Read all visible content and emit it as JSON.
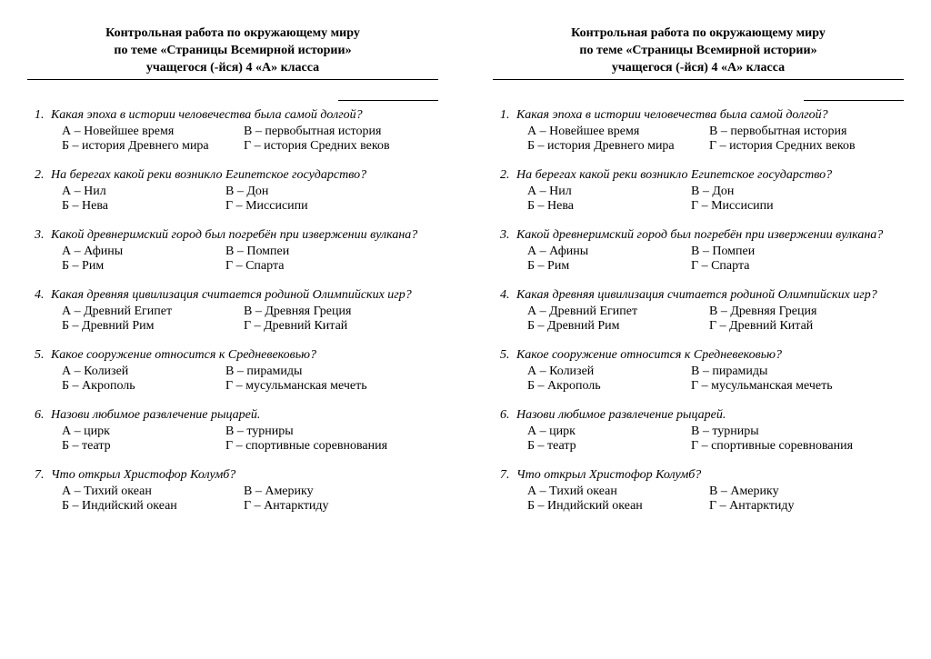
{
  "header": {
    "line1": "Контрольная работа по окружающему миру",
    "line2": "по теме «Страницы Всемирной истории»",
    "line3": "учащегося (-йся) 4 «А» класса"
  },
  "questions": [
    {
      "num": "1.",
      "text": "Какая эпоха в истории человечества была самой долгой?",
      "opts": [
        [
          "А – Новейшее время",
          "В – первобытная история"
        ],
        [
          "Б  – история Древнего мира",
          "Г – история Средних веков"
        ]
      ],
      "wide": true
    },
    {
      "num": "2.",
      "text": "На берегах какой реки возникло Египетское государство?",
      "opts": [
        [
          "А – Нил",
          "В – Дон"
        ],
        [
          "Б – Нева",
          "Г – Миссисипи"
        ]
      ]
    },
    {
      "num": "3.",
      "text": "Какой древнеримский город был погребён при извержении вулкана?",
      "opts": [
        [
          "А – Афины",
          "В – Помпеи"
        ],
        [
          "Б – Рим",
          "Г – Спарта"
        ]
      ]
    },
    {
      "num": "4.",
      "text": "Какая древняя цивилизация считается родиной Олимпийских игр?",
      "opts": [
        [
          "А – Древний Египет",
          "В – Древняя Греция"
        ],
        [
          "Б – Древний Рим",
          "Г – Древний Китай"
        ]
      ],
      "wide": true
    },
    {
      "num": "5.",
      "text": "Какое сооружение относится к Средневековью?",
      "opts": [
        [
          "А – Колизей",
          "В – пирамиды"
        ],
        [
          "Б – Акрополь",
          "Г – мусульманская мечеть"
        ]
      ]
    },
    {
      "num": "6.",
      "text": "Назови любимое развлечение рыцарей.",
      "opts": [
        [
          "А – цирк",
          "В – турниры"
        ],
        [
          "Б – театр",
          "Г – спортивные соревнования"
        ]
      ]
    },
    {
      "num": "7.",
      "text": "Что открыл Христофор Колумб?",
      "opts": [
        [
          "А – Тихий океан",
          "В – Америку"
        ],
        [
          "Б – Индийский океан",
          "Г – Антарктиду"
        ]
      ],
      "wide": true
    }
  ]
}
